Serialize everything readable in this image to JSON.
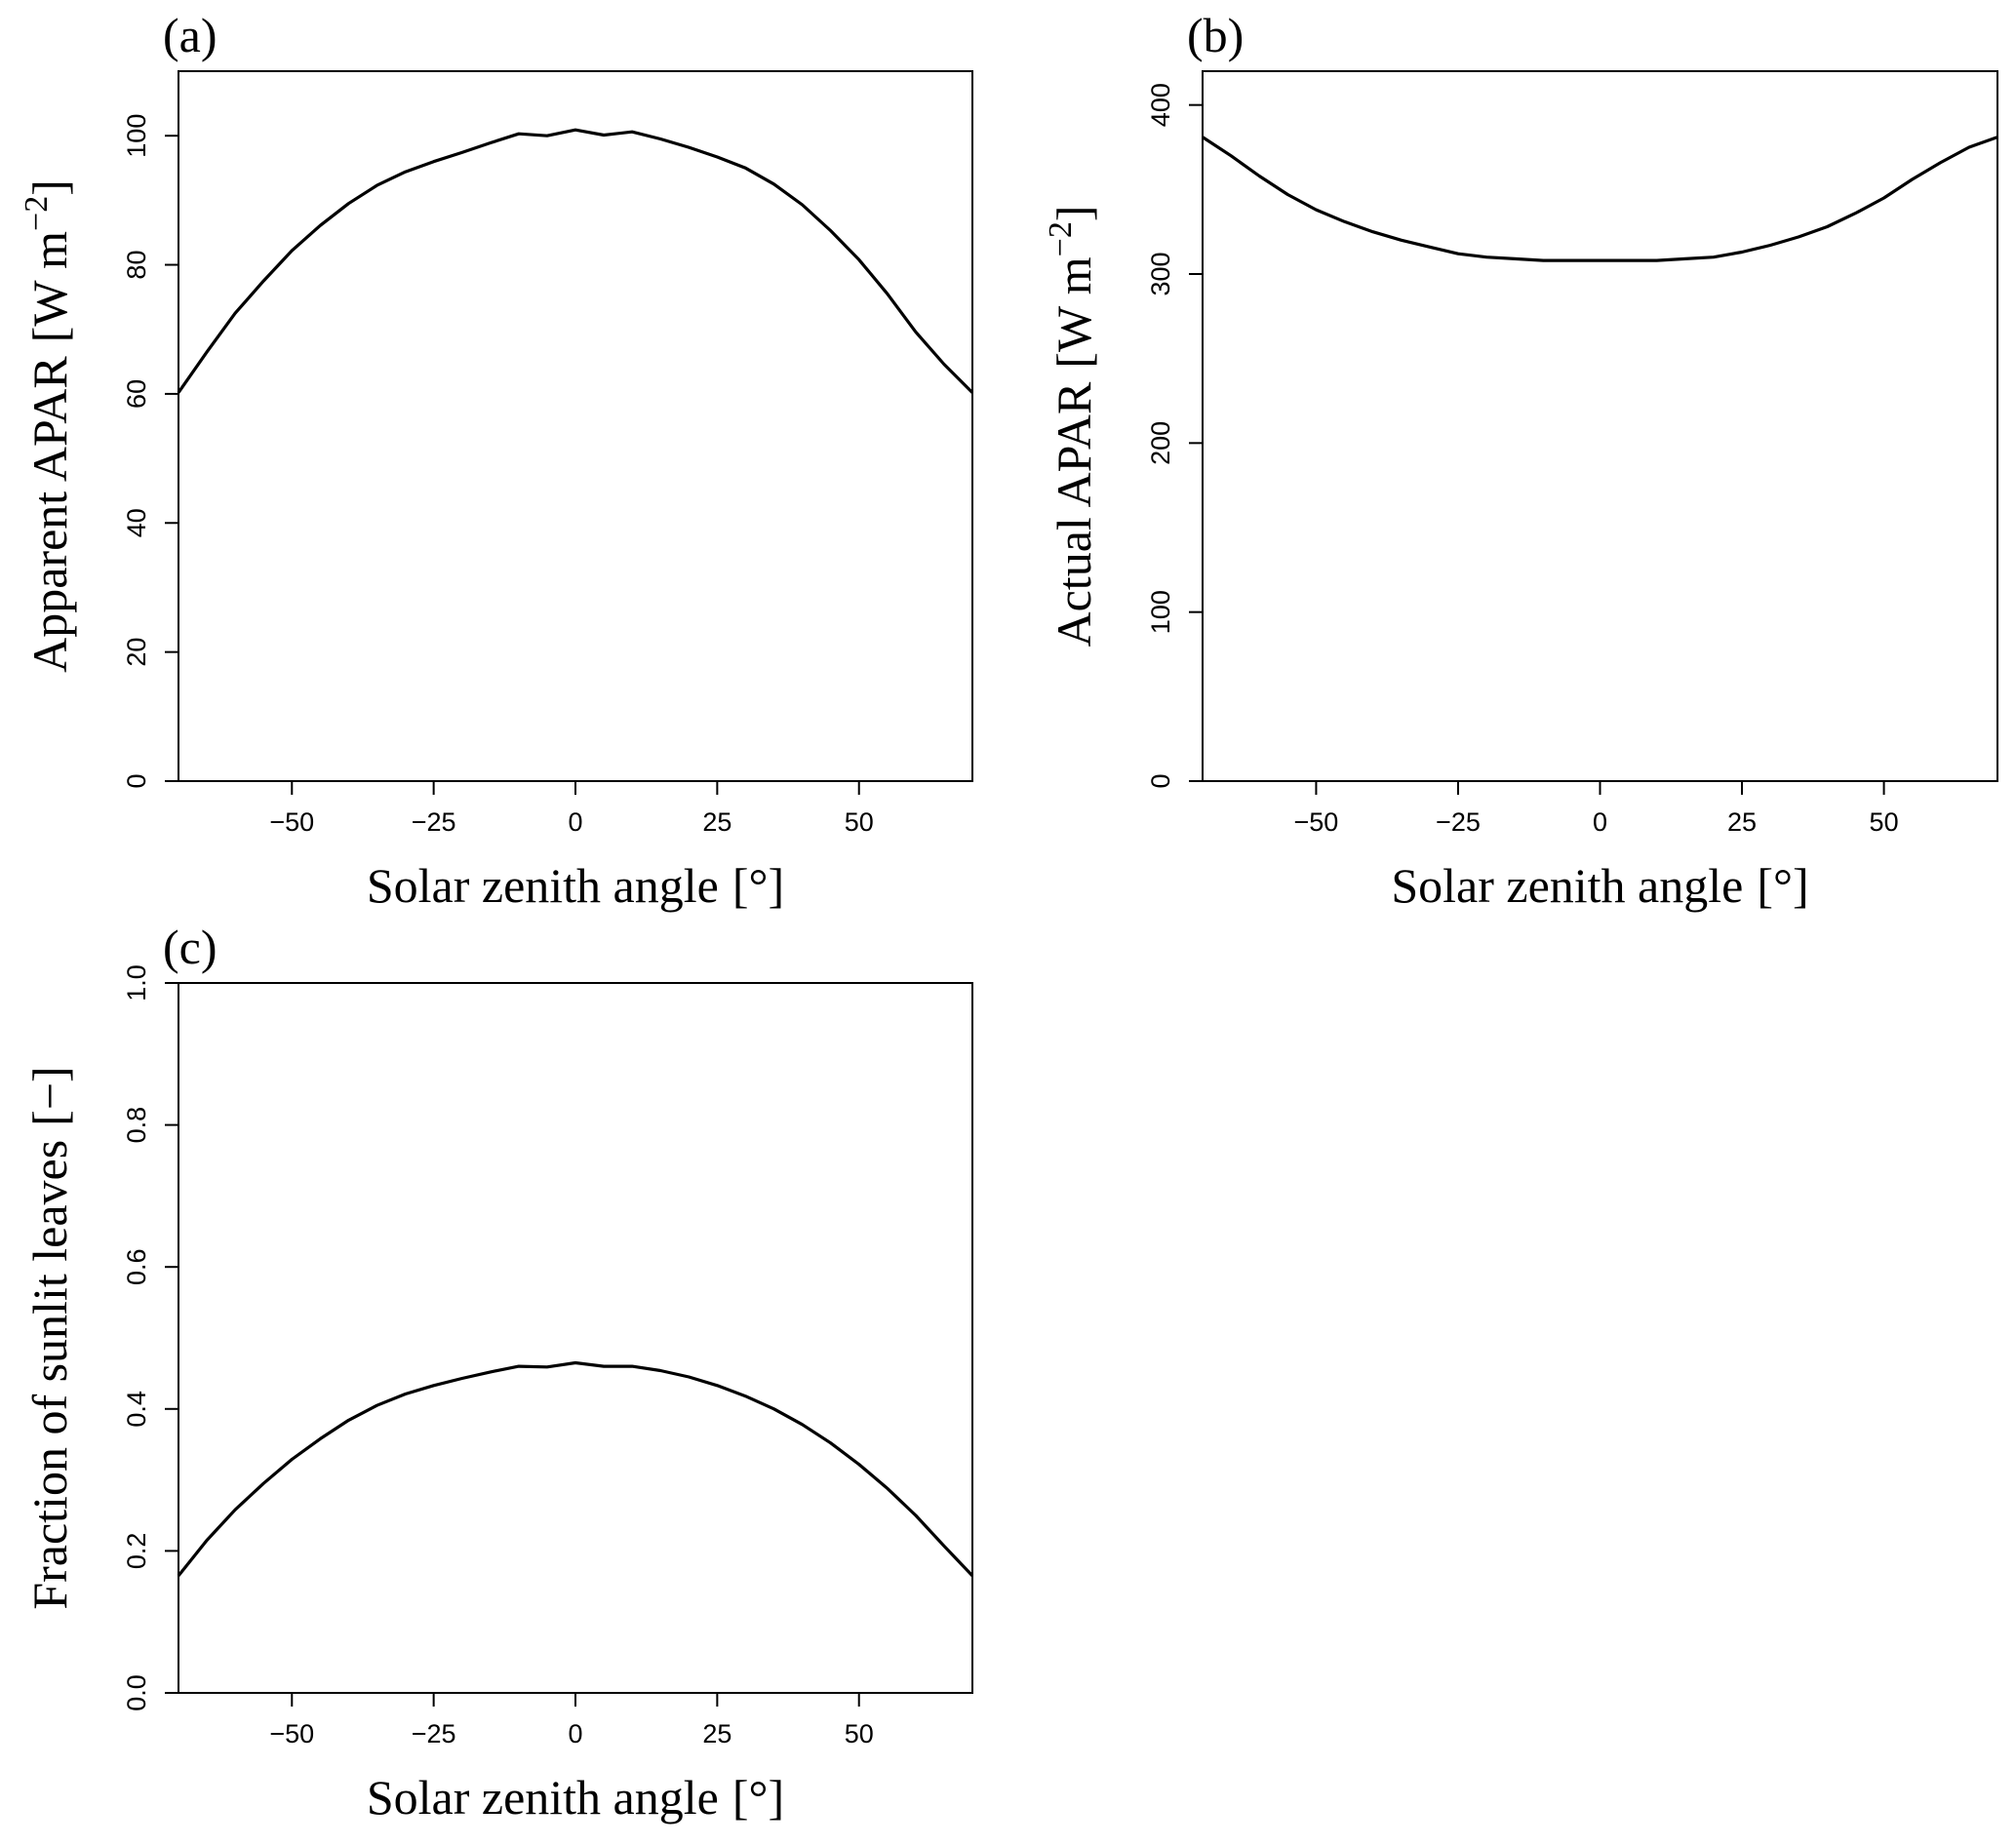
{
  "chart_data": [
    {
      "type": "line",
      "panel_label": "(a)",
      "xlabel": "Solar zenith angle",
      "xlabel_unit": "[°]",
      "ylabel": "Apparent APAR",
      "ylabel_unit_main": "[W m",
      "ylabel_unit_sup": "−2",
      "ylabel_unit_close": "]",
      "xlim": [
        -70,
        70
      ],
      "ylim": [
        0,
        110
      ],
      "xticks": [
        -50,
        -25,
        0,
        25,
        50
      ],
      "xtick_labels": [
        "−50",
        "−25",
        "0",
        "25",
        "50"
      ],
      "yticks": [
        0,
        20,
        40,
        60,
        80,
        100
      ],
      "ytick_labels": [
        "0",
        "20",
        "40",
        "60",
        "80",
        "100"
      ],
      "grid": false,
      "series": [
        {
          "x": [
            -70,
            -65,
            -60,
            -55,
            -50,
            -45,
            -40,
            -35,
            -30,
            -25,
            -20,
            -15,
            -10,
            -5,
            0,
            5,
            10,
            15,
            20,
            25,
            30,
            35,
            40,
            45,
            50,
            55,
            60,
            65,
            70
          ],
          "y": [
            60.2,
            66.5,
            72.5,
            77.5,
            82.2,
            86.1,
            89.5,
            92.3,
            94.4,
            96.0,
            97.4,
            98.9,
            100.3,
            100.0,
            100.9,
            100.1,
            100.6,
            99.5,
            98.2,
            96.7,
            95.0,
            92.5,
            89.3,
            85.3,
            80.8,
            75.5,
            69.6,
            64.6,
            60.2
          ]
        }
      ]
    },
    {
      "type": "line",
      "panel_label": "(b)",
      "xlabel": "Solar zenith angle",
      "xlabel_unit": "[°]",
      "ylabel": "Actual APAR",
      "ylabel_unit_main": "[W m",
      "ylabel_unit_sup": "−2",
      "ylabel_unit_close": "]",
      "xlim": [
        -70,
        70
      ],
      "ylim": [
        0,
        420
      ],
      "xticks": [
        -50,
        -25,
        0,
        25,
        50
      ],
      "xtick_labels": [
        "−50",
        "−25",
        "0",
        "25",
        "50"
      ],
      "yticks": [
        0,
        100,
        200,
        300,
        400
      ],
      "ytick_labels": [
        "0",
        "100",
        "200",
        "300",
        "400"
      ],
      "grid": false,
      "series": [
        {
          "x": [
            -70,
            -65,
            -60,
            -55,
            -50,
            -45,
            -40,
            -35,
            -30,
            -25,
            -20,
            -15,
            -10,
            -5,
            0,
            5,
            10,
            15,
            20,
            25,
            30,
            35,
            40,
            45,
            50,
            55,
            60,
            65,
            70
          ],
          "y": [
            381,
            370,
            358,
            347,
            338,
            331,
            325,
            320,
            316,
            312,
            310,
            309,
            308,
            308,
            308,
            308,
            308,
            309,
            310,
            313,
            317,
            322,
            328,
            336,
            345,
            356,
            366,
            375,
            381
          ]
        }
      ]
    },
    {
      "type": "line",
      "panel_label": "(c)",
      "xlabel": "Solar zenith angle",
      "xlabel_unit": "[°]",
      "ylabel": "Fraction of sunlit leaves",
      "ylabel_unit_main": "[−]",
      "ylabel_unit_sup": "",
      "ylabel_unit_close": "",
      "xlim": [
        -70,
        70
      ],
      "ylim": [
        0,
        1.0
      ],
      "xticks": [
        -50,
        -25,
        0,
        25,
        50
      ],
      "xtick_labels": [
        "−50",
        "−25",
        "0",
        "25",
        "50"
      ],
      "yticks": [
        0.0,
        0.2,
        0.4,
        0.6,
        0.8,
        1.0
      ],
      "ytick_labels": [
        "0.0",
        "0.2",
        "0.4",
        "0.6",
        "0.8",
        "1.0"
      ],
      "grid": false,
      "series": [
        {
          "x": [
            -70,
            -65,
            -60,
            -55,
            -50,
            -45,
            -40,
            -35,
            -30,
            -25,
            -20,
            -15,
            -10,
            -5,
            0,
            5,
            10,
            15,
            20,
            25,
            30,
            35,
            40,
            45,
            50,
            55,
            60,
            65,
            70
          ],
          "y": [
            0.165,
            0.215,
            0.258,
            0.295,
            0.329,
            0.358,
            0.384,
            0.405,
            0.421,
            0.433,
            0.443,
            0.452,
            0.46,
            0.459,
            0.465,
            0.46,
            0.46,
            0.454,
            0.445,
            0.433,
            0.418,
            0.4,
            0.378,
            0.352,
            0.322,
            0.288,
            0.25,
            0.207,
            0.165
          ]
        }
      ]
    }
  ]
}
